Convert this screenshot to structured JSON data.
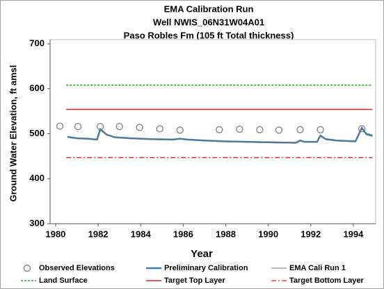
{
  "chart_data": {
    "type": "line",
    "title": [
      "EMA Calibration Run",
      "Well NWIS_06N31W04A01",
      "Paso Robles Fm (105 ft Total thickness)"
    ],
    "xlabel": "Year",
    "ylabel": "Ground Water Elevation, ft amsl",
    "xlim": [
      1979.74,
      1995.05
    ],
    "ylim": [
      300,
      700
    ],
    "xticks": [
      1980,
      1982,
      1984,
      1986,
      1988,
      1990,
      1992,
      1994
    ],
    "yticks": [
      300,
      400,
      500,
      600,
      700
    ],
    "series": [
      {
        "name": "Observed Elevations",
        "color": "#7f7f7f",
        "style": "markers",
        "x": [
          1980.2,
          1981.05,
          1982.1,
          1983.0,
          1983.95,
          1984.9,
          1985.85,
          1987.7,
          1988.65,
          1989.6,
          1990.5,
          1991.5,
          1992.45,
          1994.4
        ],
        "values": [
          517,
          516,
          516,
          516,
          514,
          511,
          508,
          509,
          510,
          509,
          508,
          509,
          509,
          511
        ]
      },
      {
        "name": "Preliminary Calibration",
        "color": "#3a7fb5",
        "style": "solid",
        "width": 2.5,
        "x": [
          1980.55,
          1981.0,
          1981.5,
          1981.95,
          1982.1,
          1982.4,
          1982.8,
          1983.5,
          1984.5,
          1985.5,
          1985.85,
          1986.2,
          1987,
          1988,
          1989,
          1990,
          1991.3,
          1991.5,
          1991.7,
          1992.3,
          1992.45,
          1992.7,
          1993.2,
          1994.1,
          1994.4,
          1994.6,
          1994.9
        ],
        "values": [
          493,
          490,
          489,
          487,
          510,
          498,
          492,
          490,
          488,
          487,
          489,
          487,
          485,
          483,
          482,
          481,
          480,
          485,
          482,
          482,
          496,
          488,
          485,
          483,
          513,
          500,
          496
        ]
      },
      {
        "name": "EMA Cali Run 1",
        "color": "#707070",
        "style": "solid",
        "width": 1,
        "x": [
          1980.55,
          1981.0,
          1981.5,
          1981.95,
          1982.1,
          1982.4,
          1982.8,
          1983.5,
          1984.5,
          1985.5,
          1985.85,
          1986.2,
          1987,
          1988,
          1989,
          1990,
          1991.3,
          1991.5,
          1991.7,
          1992.3,
          1992.45,
          1992.7,
          1993.2,
          1994.1,
          1994.4,
          1994.6,
          1994.9
        ],
        "values": [
          492,
          489,
          488,
          486,
          509,
          497,
          491,
          489,
          487,
          486,
          488,
          486,
          484,
          482,
          481,
          480,
          479,
          484,
          481,
          481,
          495,
          487,
          484,
          482,
          512,
          498,
          494
        ]
      },
      {
        "name": "Land Surface",
        "color": "#00a000",
        "style": "dashed",
        "width": 1.3,
        "x": [
          1980.5,
          1994.9
        ],
        "values": [
          608,
          608
        ]
      },
      {
        "name": "Target Top Layer",
        "color": "#e02020",
        "style": "solid",
        "width": 1.5,
        "x": [
          1980.5,
          1994.9
        ],
        "values": [
          554,
          554
        ]
      },
      {
        "name": "Target Bottom Layer",
        "color": "#e02020",
        "style": "dashdot",
        "width": 1.3,
        "x": [
          1980.5,
          1994.9
        ],
        "values": [
          447,
          447
        ]
      }
    ]
  }
}
